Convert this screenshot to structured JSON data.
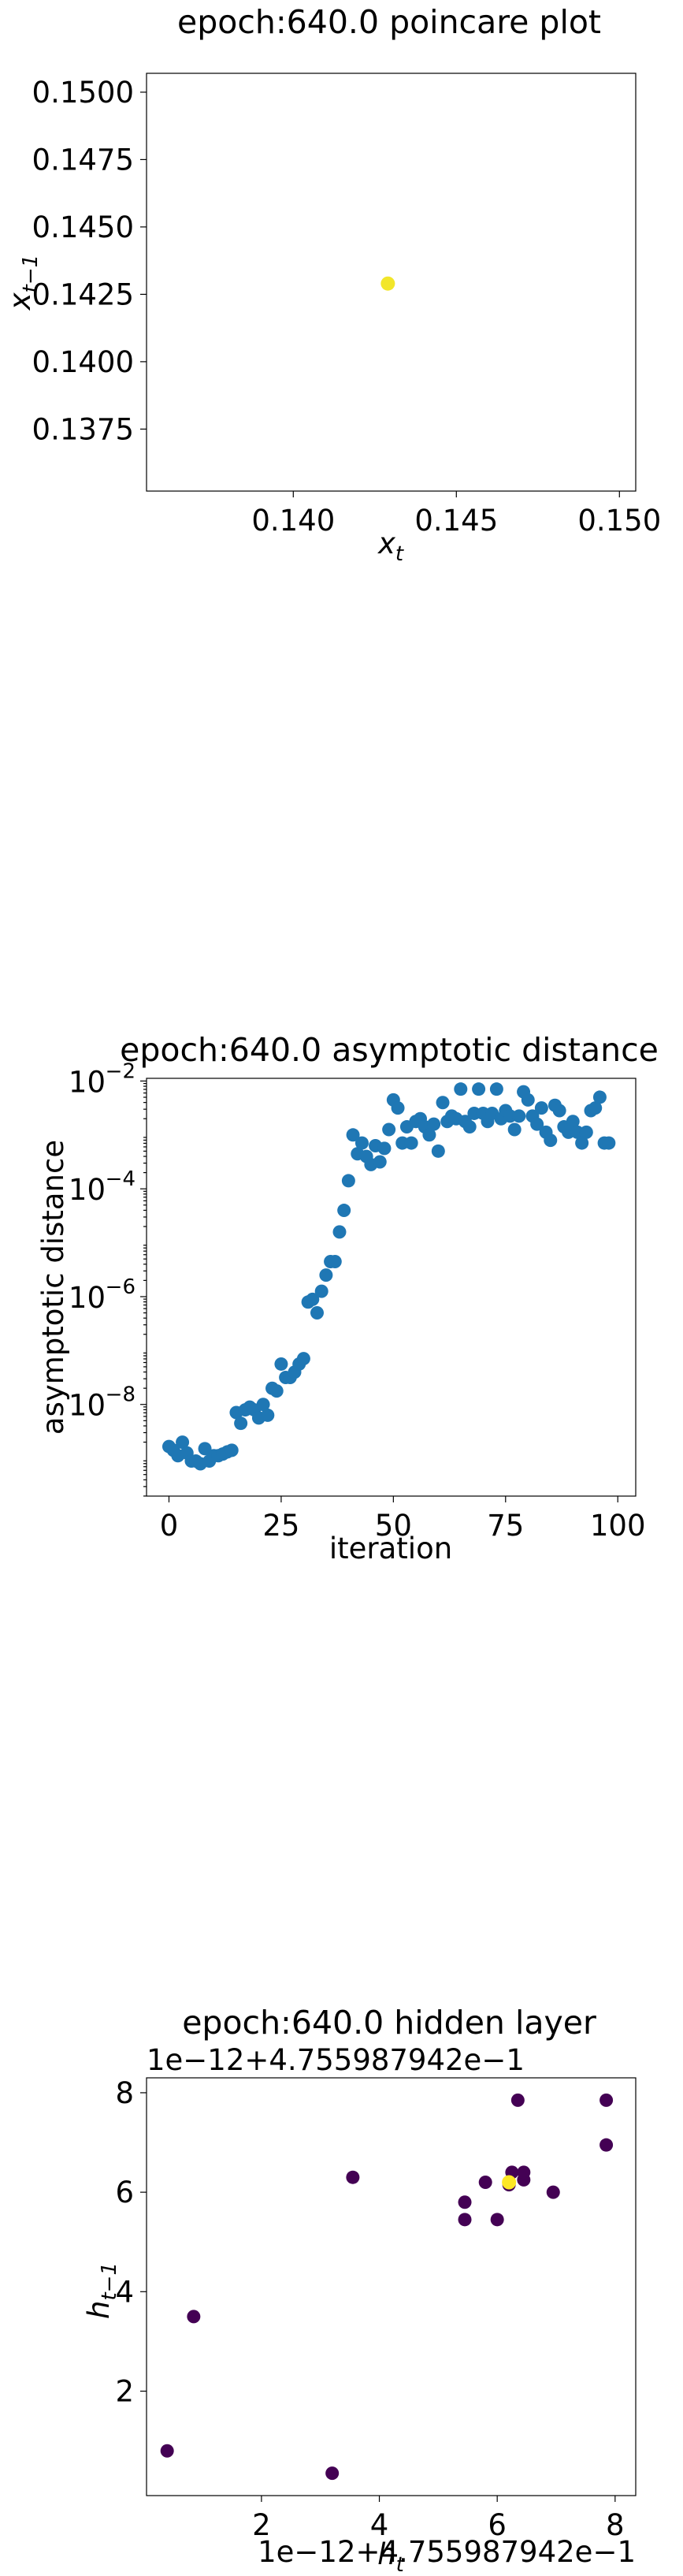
{
  "chart_data": [
    {
      "type": "scatter",
      "title": "epoch:640.0 poincare plot",
      "xlabel": "x_t",
      "ylabel": "x_{t-1}",
      "xlim": [
        0.1355,
        0.1505
      ],
      "ylim": [
        0.1352,
        0.1507
      ],
      "xticks": [
        {
          "v": 0.14,
          "label": "0.140"
        },
        {
          "v": 0.145,
          "label": "0.145"
        },
        {
          "v": 0.15,
          "label": "0.150"
        }
      ],
      "yticks": [
        {
          "v": 0.1375,
          "label": "0.1375"
        },
        {
          "v": 0.14,
          "label": "0.1400"
        },
        {
          "v": 0.1425,
          "label": "0.1425"
        },
        {
          "v": 0.145,
          "label": "0.1450"
        },
        {
          "v": 0.1475,
          "label": "0.1475"
        },
        {
          "v": 0.15,
          "label": "0.1500"
        }
      ],
      "color": "#f2e62a",
      "points": [
        [
          0.1429,
          0.1429
        ]
      ]
    },
    {
      "type": "scatter",
      "title": "epoch:640.0 asymptotic distance",
      "xlabel": "iteration",
      "ylabel": "asymptotic distance",
      "yscale": "log",
      "xlim": [
        -5,
        104
      ],
      "ylog_lim": [
        -9.7,
        -1.95
      ],
      "xticks": [
        {
          "v": 0,
          "label": "0"
        },
        {
          "v": 25,
          "label": "25"
        },
        {
          "v": 50,
          "label": "50"
        },
        {
          "v": 75,
          "label": "75"
        },
        {
          "v": 100,
          "label": "100"
        }
      ],
      "yticks": [
        {
          "v": -8,
          "base": "10",
          "exp": "−8"
        },
        {
          "v": -6,
          "base": "10",
          "exp": "−6"
        },
        {
          "v": -4,
          "base": "10",
          "exp": "−4"
        },
        {
          "v": -2,
          "base": "10",
          "exp": "−2"
        }
      ],
      "color": "#1f77b4",
      "x": [
        0,
        1,
        2,
        3,
        4,
        5,
        6,
        7,
        8,
        9,
        10,
        11,
        12,
        13,
        14,
        15,
        16,
        17,
        18,
        19,
        20,
        21,
        22,
        23,
        24,
        25,
        26,
        27,
        28,
        29,
        30,
        31,
        32,
        33,
        34,
        35,
        36,
        37,
        38,
        39,
        40,
        41,
        42,
        43,
        44,
        45,
        46,
        47,
        48,
        49,
        50,
        51,
        52,
        53,
        54,
        55,
        56,
        57,
        58,
        59,
        60,
        61,
        62,
        63,
        64,
        65,
        66,
        67,
        68,
        69,
        70,
        71,
        72,
        73,
        74,
        75,
        76,
        77,
        78,
        79,
        80,
        81,
        82,
        83,
        84,
        85,
        86,
        87,
        88,
        89,
        90,
        91,
        92,
        93,
        94,
        95,
        96,
        97,
        98
      ],
      "log10_values": [
        -8.78,
        -8.85,
        -8.95,
        -8.7,
        -8.9,
        -9.05,
        -9.05,
        -9.1,
        -8.82,
        -9.05,
        -8.95,
        -8.95,
        -8.92,
        -8.88,
        -8.85,
        -8.15,
        -8.35,
        -8.1,
        -8.05,
        -8.1,
        -8.25,
        -8.0,
        -8.2,
        -7.7,
        -7.75,
        -7.25,
        -7.5,
        -7.5,
        -7.4,
        -7.25,
        -7.15,
        -6.1,
        -6.05,
        -6.3,
        -5.9,
        -5.6,
        -5.35,
        -5.35,
        -4.8,
        -4.4,
        -3.85,
        -3.0,
        -3.35,
        -3.15,
        -3.4,
        -3.55,
        -3.2,
        -3.5,
        -3.25,
        -2.9,
        -2.35,
        -2.5,
        -3.15,
        -2.85,
        -3.15,
        -2.75,
        -2.7,
        -2.85,
        -3.0,
        -2.8,
        -3.3,
        -2.4,
        -2.75,
        -2.65,
        -2.7,
        -2.15,
        -2.75,
        -2.85,
        -2.6,
        -2.15,
        -2.6,
        -2.75,
        -2.6,
        -2.15,
        -2.7,
        -2.55,
        -2.65,
        -2.9,
        -2.65,
        -2.2,
        -2.35,
        -2.65,
        -2.8,
        -2.5,
        -2.95,
        -3.1,
        -2.45,
        -2.55,
        -2.85,
        -2.95,
        -2.75,
        -2.95,
        -3.15,
        -2.95,
        -2.55,
        -2.5,
        -2.3,
        -3.15,
        -3.15
      ]
    },
    {
      "type": "scatter",
      "title": "epoch:640.0 hidden layer",
      "xlabel": "h_t",
      "ylabel": "h_{t-1}",
      "x_offset_label": "1e−12+4.755987942e−1",
      "y_offset_label": "1e−12+4.755987942e−1",
      "xlim": [
        0.05,
        8.35
      ],
      "ylim": [
        -0.1,
        8.3
      ],
      "xticks": [
        {
          "v": 2,
          "label": "2"
        },
        {
          "v": 4,
          "label": "4"
        },
        {
          "v": 6,
          "label": "6"
        },
        {
          "v": 8,
          "label": "8"
        }
      ],
      "yticks": [
        {
          "v": 2,
          "label": "2"
        },
        {
          "v": 4,
          "label": "4"
        },
        {
          "v": 6,
          "label": "6"
        },
        {
          "v": 8,
          "label": "8"
        }
      ],
      "color": "#440154",
      "highlight_color": "#fde725",
      "points": [
        [
          0.4,
          0.8
        ],
        [
          0.85,
          3.5
        ],
        [
          3.2,
          0.35
        ],
        [
          3.55,
          6.3
        ],
        [
          5.45,
          5.8
        ],
        [
          5.45,
          5.45
        ],
        [
          5.8,
          6.2
        ],
        [
          6.0,
          5.45
        ],
        [
          6.2,
          6.15
        ],
        [
          6.25,
          6.4
        ],
        [
          6.35,
          7.85
        ],
        [
          6.45,
          6.25
        ],
        [
          6.45,
          6.4
        ],
        [
          6.95,
          6.0
        ],
        [
          7.85,
          7.85
        ],
        [
          7.85,
          6.95
        ]
      ],
      "highlight_point": [
        6.2,
        6.2
      ]
    }
  ]
}
